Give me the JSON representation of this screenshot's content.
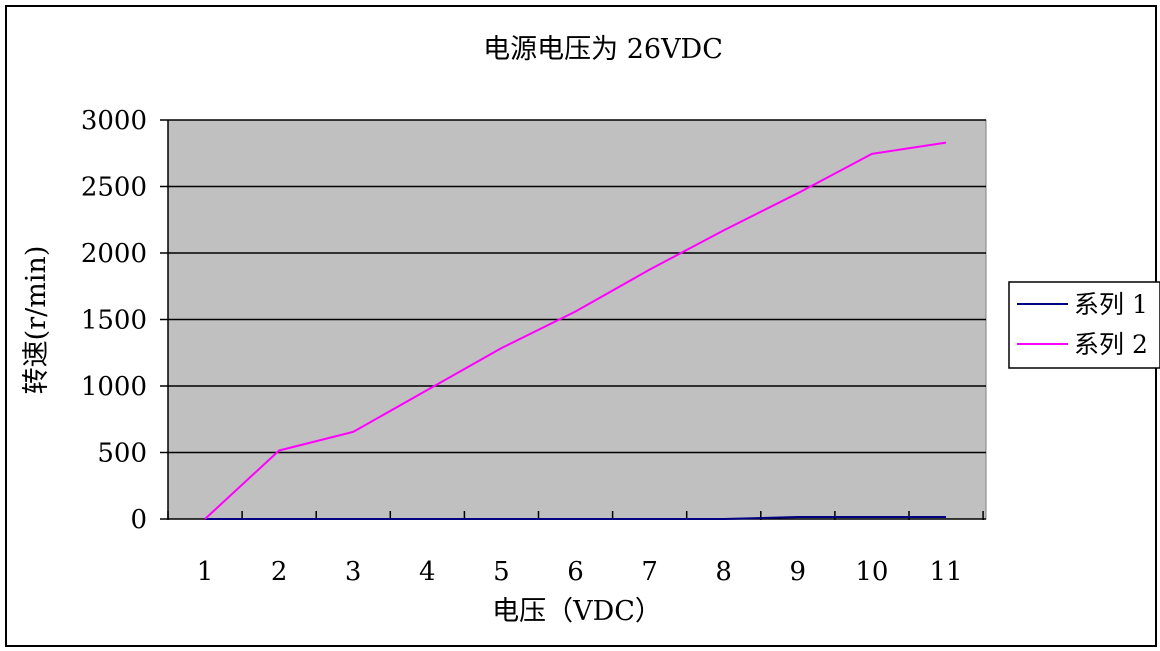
{
  "chart_data": {
    "type": "line",
    "title": "电源电压为 26VDC",
    "xlabel": "电压（VDC）",
    "ylabel": "转速(r/min)",
    "categories": [
      "1",
      "2",
      "3",
      "4",
      "5",
      "6",
      "7",
      "8",
      "9",
      "10",
      "11"
    ],
    "ylim": [
      0,
      3000
    ],
    "yticks": [
      0,
      500,
      1000,
      1500,
      2000,
      2500,
      3000
    ],
    "grid": true,
    "plot_background": "#c0c0c0",
    "legend_position": "right",
    "series": [
      {
        "name": "系列 1",
        "color": "#000080",
        "values": [
          0,
          0,
          0,
          0,
          0,
          0,
          0,
          0,
          15,
          15,
          15
        ]
      },
      {
        "name": "系列 2",
        "color": "#ff00ff",
        "values": [
          0,
          515,
          655,
          970,
          1285,
          1560,
          1875,
          2170,
          2450,
          2745,
          2830
        ]
      }
    ]
  }
}
